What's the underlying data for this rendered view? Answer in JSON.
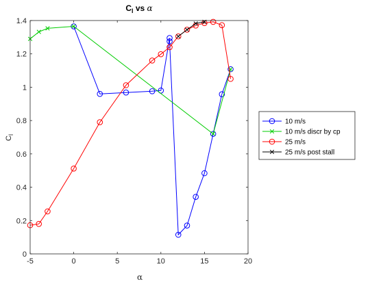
{
  "chart_data": {
    "type": "line",
    "title": "Cₗ vs α",
    "title_main": "C",
    "title_sub": "l",
    "title_rest": " vs ",
    "title_alpha": "α",
    "xlabel": "α",
    "ylabel_main": "C",
    "ylabel_sub": "l",
    "xlim": [
      -5,
      20
    ],
    "ylim": [
      0,
      1.4
    ],
    "xticks": [
      -5,
      0,
      5,
      10,
      15,
      20
    ],
    "xtick_labels": [
      "-5",
      "0",
      "5",
      "10",
      "15",
      "20"
    ],
    "yticks": [
      0,
      0.2,
      0.4,
      0.6,
      0.8,
      1,
      1.2,
      1.4
    ],
    "ytick_labels": [
      "0",
      "0.2",
      "0.4",
      "0.6",
      "0.8",
      "1",
      "1.2",
      "1.4"
    ],
    "grid": false,
    "legend_position": "outside-right",
    "series": [
      {
        "name": "10 m/s",
        "color": "#0000ff",
        "marker": "circle",
        "x": [
          0,
          3,
          6,
          9,
          10,
          11,
          11,
          12,
          13,
          14,
          15,
          16,
          17,
          18
        ],
        "y": [
          1.365,
          0.96,
          0.968,
          0.976,
          0.98,
          1.295,
          1.275,
          0.115,
          0.17,
          0.342,
          0.484,
          0.72,
          0.958,
          1.108
        ]
      },
      {
        "name": "10 m/s discr by cp",
        "color": "#00cc00",
        "marker": "x",
        "x": [
          -5,
          -4,
          -3,
          0,
          16,
          18
        ],
        "y": [
          1.29,
          1.332,
          1.353,
          1.365,
          0.72,
          1.108
        ]
      },
      {
        "name": "25 m/s",
        "color": "#ff0000",
        "marker": "circle",
        "x": [
          -5,
          -4,
          -3,
          0,
          3,
          6,
          9,
          10,
          11,
          12,
          13,
          14,
          15,
          16,
          17,
          18
        ],
        "y": [
          0.172,
          0.18,
          0.255,
          0.512,
          0.79,
          1.012,
          1.16,
          1.198,
          1.24,
          1.305,
          1.345,
          1.37,
          1.385,
          1.392,
          1.372,
          1.05
        ]
      },
      {
        "name": "25 m/s post stall",
        "color": "#000000",
        "marker": "x",
        "x": [
          12,
          13,
          14,
          15
        ],
        "y": [
          1.305,
          1.345,
          1.382,
          1.392
        ]
      }
    ]
  }
}
